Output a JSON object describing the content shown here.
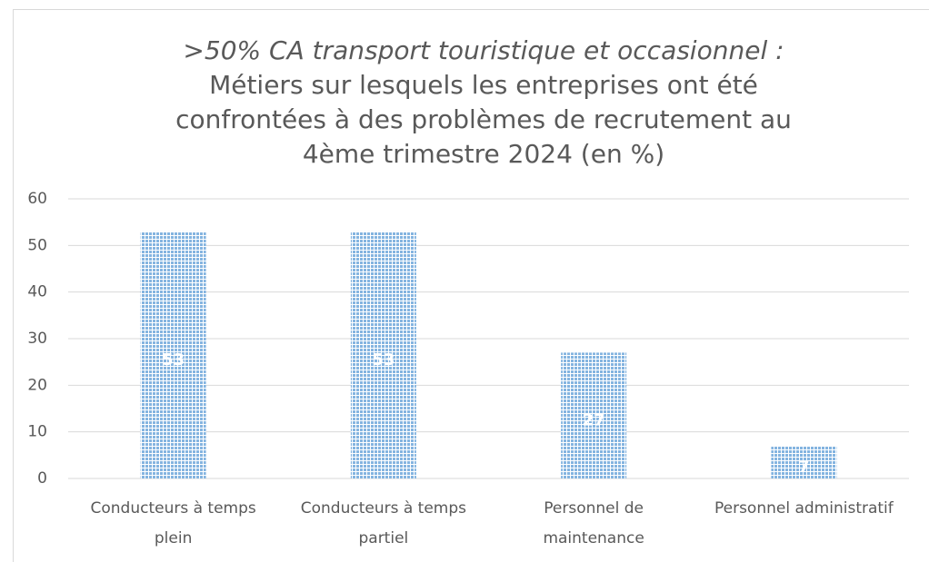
{
  "chart_data": {
    "type": "bar",
    "title": ">50% CA transport touristique et occasionnel :",
    "subtitle": [
      "Métiers sur lesquels les entreprises ont été",
      "confrontées à des problèmes de recrutement au",
      "4ème trimestre 2024 (en %)"
    ],
    "categories": [
      "Conducteurs à temps plein",
      "Conducteurs à temps partiel",
      "Personnel de maintenance",
      "Personnel administratif"
    ],
    "values": [
      53,
      53,
      27,
      7
    ],
    "color": "#5b9bd5",
    "ylim": [
      0,
      60
    ],
    "yticks": [
      0,
      10,
      20,
      30,
      40,
      50,
      60
    ],
    "grid": true
  }
}
